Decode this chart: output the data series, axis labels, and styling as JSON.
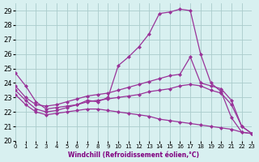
{
  "background_color": "#d8f0f0",
  "grid_color": "#aacccc",
  "line_color": "#993399",
  "xlim": [
    0,
    23
  ],
  "ylim": [
    20,
    29.5
  ],
  "yticks": [
    20,
    21,
    22,
    23,
    24,
    25,
    26,
    27,
    28,
    29
  ],
  "xticks": [
    0,
    1,
    2,
    3,
    4,
    5,
    6,
    7,
    8,
    9,
    10,
    11,
    12,
    13,
    14,
    15,
    16,
    17,
    18,
    19,
    20,
    21,
    22,
    23
  ],
  "xlabel": "Windchill (Refroidissement éolien,°C)",
  "line1_x": [
    0,
    1,
    2,
    3,
    4,
    5,
    6,
    7,
    8,
    9,
    10,
    11,
    12,
    13,
    14,
    15,
    16,
    17,
    18,
    19,
    20,
    21,
    22,
    23
  ],
  "line1_y": [
    24.7,
    23.8,
    22.7,
    22.2,
    22.3,
    22.4,
    22.5,
    22.8,
    22.7,
    23.0,
    25.2,
    25.8,
    26.5,
    27.4,
    28.8,
    28.9,
    29.1,
    29.0,
    26.0,
    24.0,
    23.4,
    21.6,
    20.6,
    20.5
  ],
  "line2_x": [
    0,
    1,
    2,
    3,
    4,
    5,
    6,
    7,
    8,
    9,
    10,
    11,
    12,
    13,
    14,
    15,
    16,
    17,
    18,
    19,
    20,
    21,
    22,
    23
  ],
  "line2_y": [
    23.8,
    23.0,
    22.5,
    22.4,
    22.5,
    22.7,
    22.9,
    23.1,
    23.2,
    23.3,
    23.5,
    23.7,
    23.9,
    24.1,
    24.3,
    24.5,
    24.6,
    25.8,
    24.0,
    23.8,
    23.6,
    22.8,
    21.0,
    20.5
  ],
  "line3_x": [
    0,
    1,
    2,
    3,
    4,
    5,
    6,
    7,
    8,
    9,
    10,
    11,
    12,
    13,
    14,
    15,
    16,
    17,
    18,
    19,
    20,
    21,
    22,
    23
  ],
  "line3_y": [
    23.5,
    22.8,
    22.2,
    22.0,
    22.1,
    22.3,
    22.5,
    22.7,
    22.8,
    22.9,
    23.0,
    23.1,
    23.2,
    23.4,
    23.5,
    23.6,
    23.8,
    23.9,
    23.8,
    23.5,
    23.3,
    22.5,
    21.0,
    20.5
  ],
  "line4_x": [
    0,
    1,
    2,
    3,
    4,
    5,
    6,
    7,
    8,
    9,
    10,
    11,
    12,
    13,
    14,
    15,
    16,
    17,
    18,
    19,
    20,
    21,
    22,
    23
  ],
  "line4_y": [
    23.2,
    22.5,
    22.0,
    21.8,
    21.9,
    22.0,
    22.1,
    22.2,
    22.2,
    22.1,
    22.0,
    21.9,
    21.8,
    21.7,
    21.5,
    21.4,
    21.3,
    21.2,
    21.1,
    21.0,
    20.9,
    20.8,
    20.6,
    20.5
  ]
}
